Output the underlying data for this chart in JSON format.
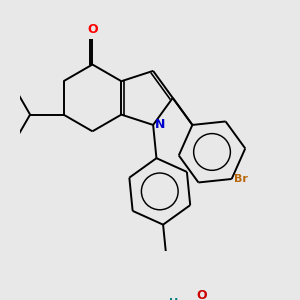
{
  "background_color": "#e8e8e8",
  "bond_color": "#000000",
  "line_width": 1.4,
  "fig_size": [
    3.0,
    3.0
  ],
  "dpi": 100,
  "atoms": {
    "O_ketone": {
      "label": "O",
      "color": "#ff0000",
      "fontsize": 9
    },
    "N": {
      "label": "N",
      "color": "#0000cd",
      "fontsize": 9
    },
    "Br": {
      "label": "Br",
      "color": "#b8680a",
      "fontsize": 8
    },
    "O_hydroxyl": {
      "label": "O",
      "color": "#cc0000",
      "fontsize": 9
    },
    "H_hydroxyl": {
      "label": "H",
      "color": "#008080",
      "fontsize": 8
    }
  },
  "xlim": [
    -2.8,
    3.5
  ],
  "ylim": [
    -3.2,
    2.8
  ]
}
